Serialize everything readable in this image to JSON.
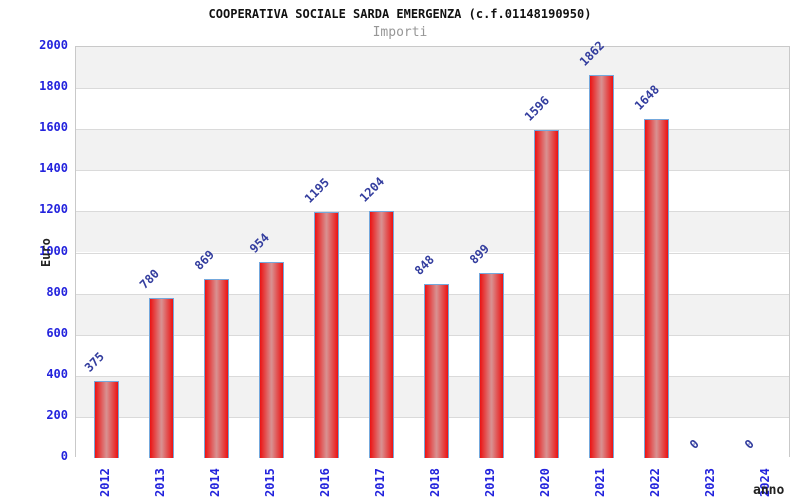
{
  "header": {
    "title": "COOPERATIVA SOCIALE SARDA EMERGENZA (c.f.01148190950)",
    "subtitle": "Importi"
  },
  "chart_data": {
    "type": "bar",
    "title": "COOPERATIVA SOCIALE SARDA EMERGENZA (c.f.01148190950)",
    "subtitle": "Importi",
    "xlabel": "anno",
    "ylabel": "Euro",
    "categories": [
      "2012",
      "2013",
      "2014",
      "2015",
      "2016",
      "2017",
      "2018",
      "2019",
      "2020",
      "2021",
      "2022",
      "2023",
      "2024"
    ],
    "values": [
      375,
      780,
      869,
      954,
      1195,
      1204,
      848,
      899,
      1596,
      1862,
      1648,
      0,
      0
    ],
    "ylim": [
      0,
      2000
    ],
    "ytick_step": 200,
    "yticks": [
      0,
      200,
      400,
      600,
      800,
      1000,
      1200,
      1400,
      1600,
      1800,
      2000
    ],
    "grid": true,
    "legend_position": "none",
    "colors": {
      "band_gray": "#f2f2f2",
      "band_white": "#ffffff",
      "gridline": "#dadada",
      "plot_border": "#c9c9c9",
      "bar_edge": "#ec1212",
      "bar_mid": "#d89292",
      "bar_border": "#74a8dc",
      "axis_tick_label": "#2323dd",
      "value_label": "#333d9e",
      "title": "#111111",
      "subtitle": "#979797",
      "axis_name_label": "#222222"
    }
  }
}
